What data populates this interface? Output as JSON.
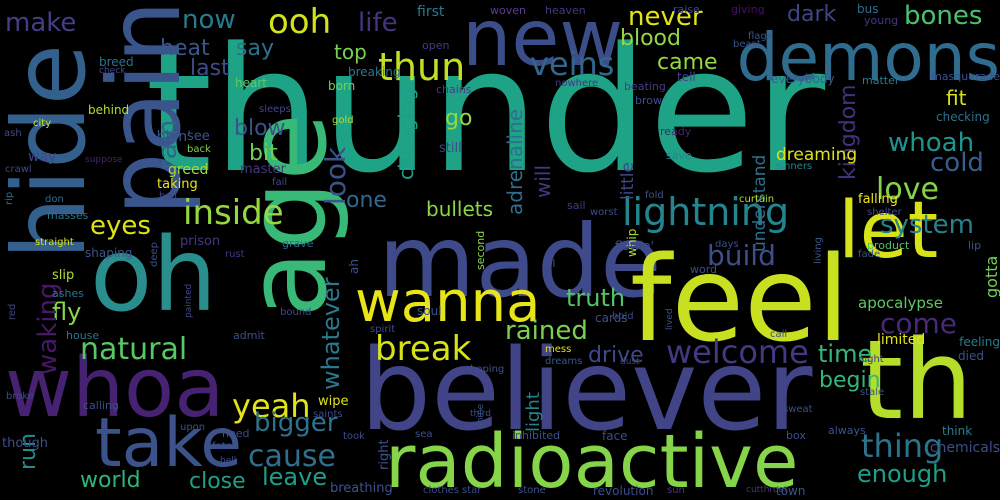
{
  "wordcloud": {
    "words": [
      "thunder",
      "new",
      "demons",
      "hide",
      "pain",
      "oh",
      "made",
      "feel",
      "let",
      "whoa",
      "believer",
      "th",
      "take",
      "radioactive",
      "age",
      "wanna",
      "lightning",
      "break",
      "ooh",
      "never",
      "now",
      "make",
      "life",
      "thun",
      "veins",
      "dark",
      "bones",
      "blood",
      "came",
      "heat",
      "say",
      "last",
      "top",
      "rain",
      "look",
      "adrenaline",
      "whoah",
      "inside",
      "system",
      "love",
      "cold",
      "kingdom",
      "eyes",
      "build",
      "truth",
      "natural",
      "welcome",
      "yeah",
      "cause",
      "bigger",
      "leave",
      "world",
      "close",
      "enough",
      "thing",
      "come",
      "time",
      "begin",
      "drive",
      "rained",
      "whatever",
      "fly",
      "waking",
      "run",
      "one",
      "bullets",
      "blow",
      "bit",
      "will",
      "changing",
      "go",
      "fit",
      "understand",
      "dreaming",
      "falling",
      "gotta",
      "apocalypse",
      "limited",
      "light",
      "little",
      "ebbin'",
      "first",
      "woven",
      "heaven",
      "raise",
      "giving",
      "bus",
      "young",
      "flags",
      "beast",
      "open",
      "tell",
      "breed",
      "check",
      "behind",
      "heart",
      "born",
      "breaking",
      "chains",
      "nowhere",
      "beating",
      "brow",
      "matter",
      "everybody",
      "masquerade",
      "ash",
      "city",
      "gold",
      "sleeps",
      "ready",
      "checking",
      "see",
      "back",
      "suppose",
      "way",
      "crawl",
      "greed",
      "master",
      "still",
      "save",
      "sinners",
      "taking",
      "fail",
      "hail",
      "rip",
      "don",
      "masses",
      "sail",
      "worst",
      "fold",
      "curtain",
      "shelter",
      "straight",
      "prison",
      "grave",
      "second",
      "whip",
      "flowin'",
      "days",
      "product",
      "lip",
      "fade",
      "shaping",
      "slip",
      "deep",
      "rust",
      "til",
      "word",
      "living",
      "ashes",
      "red",
      "painted",
      "bound",
      "spirit",
      "soul",
      "cards",
      "hold",
      "lived",
      "house",
      "admit",
      "ah",
      "call",
      "mess",
      "dreams",
      "dust",
      "hoping",
      "feeling",
      "died",
      "night",
      "stale",
      "broke",
      "wipe",
      "saints",
      "third",
      "shine",
      "sweat",
      "calling",
      "upon",
      "need",
      "always",
      "think",
      "though",
      "fate",
      "hell",
      "box",
      "chemicals",
      "took",
      "sea",
      "inhibited",
      "face",
      "right",
      "breathing",
      "clothes",
      "star",
      "stone",
      "revolution",
      "sun",
      "cutthroat",
      "town"
    ]
  }
}
